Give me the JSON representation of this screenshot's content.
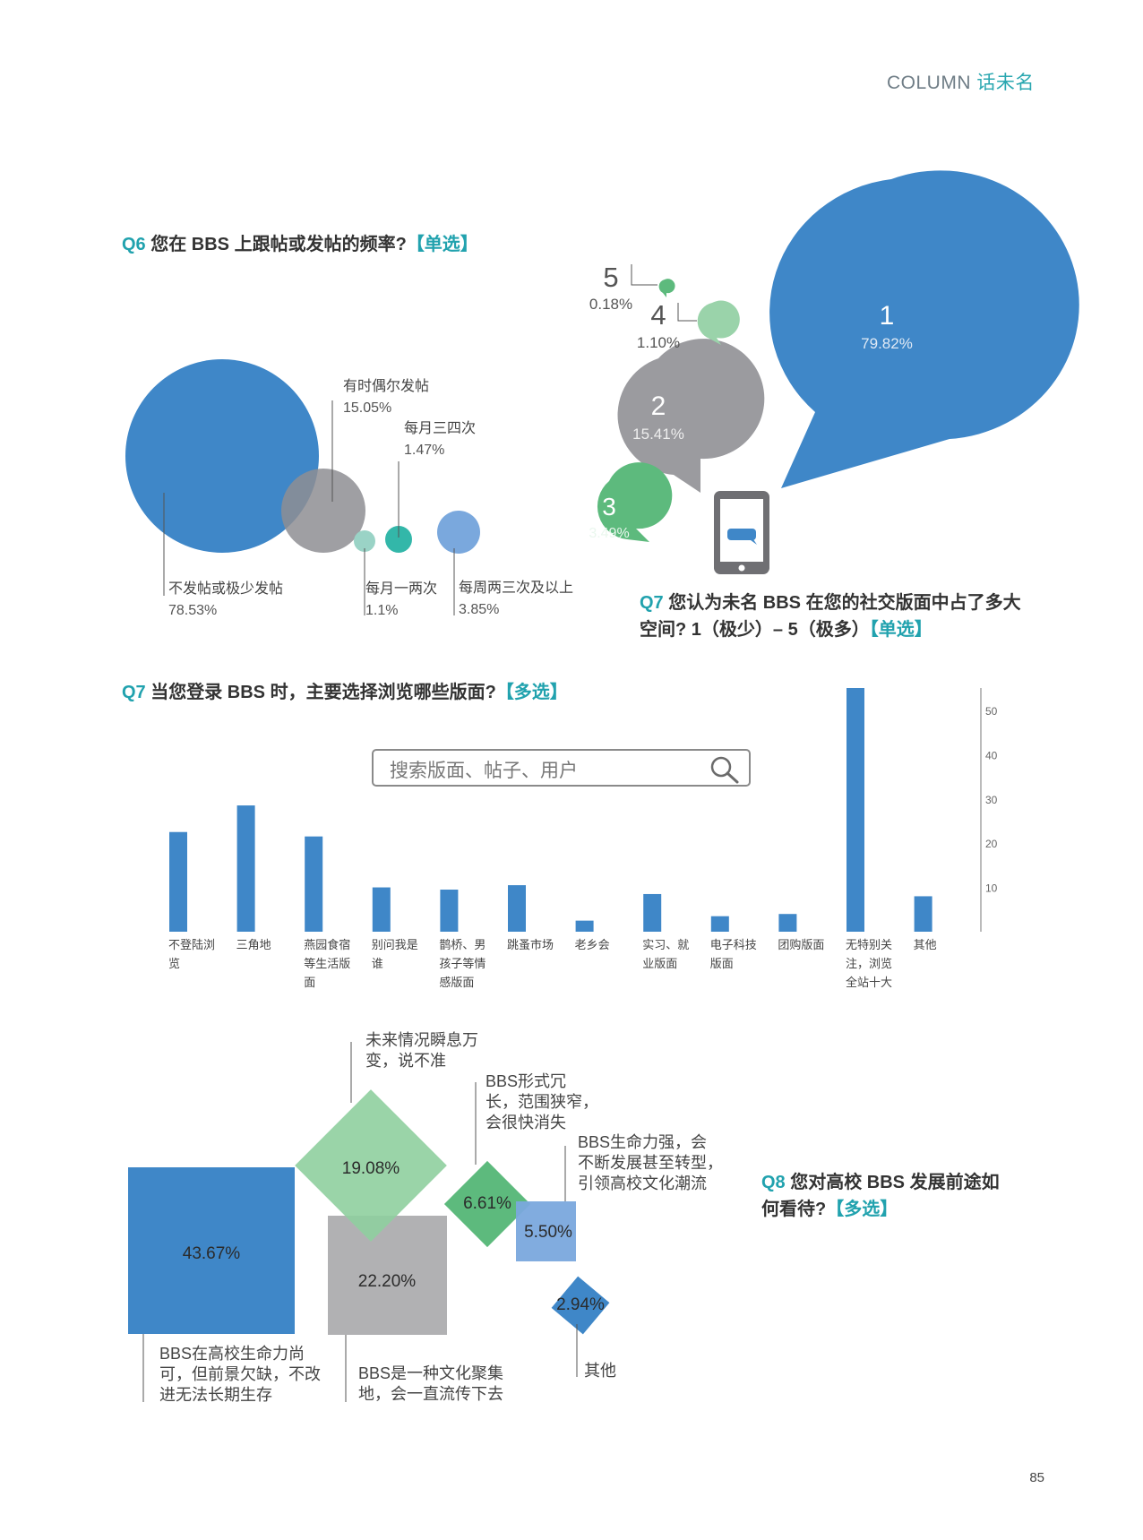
{
  "header": {
    "column": "COLUMN",
    "column_zh": "话未名"
  },
  "page_number": "85",
  "q6": {
    "num": "Q6",
    "text": " 您在 BBS 上跟帖或发帖的频率?",
    "tag": "【单选】",
    "labels": {
      "never": {
        "name": "不发帖或极少发帖",
        "pct": "78.53%"
      },
      "occasional": {
        "name": "有时偶尔发帖",
        "pct": "15.05%"
      },
      "monthly34": {
        "name": "每月三四次",
        "pct": "1.47%"
      },
      "monthly12": {
        "name": "每月一两次",
        "pct": "1.1%"
      },
      "weekly": {
        "name": "每周两三次及以上",
        "pct": "3.85%"
      }
    }
  },
  "q7a": {
    "num": "Q7",
    "line1": " 您认为未名 BBS 在您的社交版面中占了多大",
    "line2": "空间? 1（极少）– 5（极多）",
    "tag": "【单选】"
  },
  "q7b": {
    "num": "Q7",
    "text": " 当您登录 BBS 时，主要选择浏览哪些版面?",
    "tag": "【多选】",
    "search_placeholder": "搜索版面、帖子、用户"
  },
  "q8": {
    "num": "Q8",
    "line1": " 您对高校 BBS 发展前途如",
    "line2": "何看待?",
    "tag": "【多选】",
    "labels": {
      "a": [
        "BBS在高校生命力尚",
        "可，但前景欠缺，不改",
        "进无法长期生存"
      ],
      "b": [
        "BBS是一种文化聚集",
        "地，会一直流传下去"
      ],
      "c": [
        "未来情况瞬息万",
        "变，说不准"
      ],
      "d": [
        "BBS形式冗",
        "长，范围狭窄，",
        "会很快消失"
      ],
      "e": [
        "BBS生命力强，会",
        "不断发展甚至转型，",
        "引领高校文化潮流"
      ],
      "f": [
        "其他"
      ]
    }
  },
  "colors": {
    "blue": "#3f87c8",
    "gray": "#9b9b9f",
    "lightgreen": "#9ad3aa",
    "green": "#5dba7d",
    "teal": "#33b7a9",
    "lightblue": "#7aa8dd"
  },
  "chart_data": [
    {
      "type": "bubble",
      "categories": [
        "不发帖或极少发帖",
        "有时偶尔发帖",
        "每月一两次",
        "每月三四次",
        "每周两三次及以上"
      ],
      "values": [
        78.53,
        15.05,
        1.1,
        1.47,
        3.85
      ],
      "unit": "%"
    },
    {
      "type": "bubble",
      "categories": [
        "1",
        "2",
        "3",
        "4",
        "5"
      ],
      "values": [
        79.82,
        15.41,
        3.49,
        1.1,
        0.18
      ],
      "labels": [
        "79.82%",
        "15.41%",
        "3.49%",
        "1.10%",
        "0.18%"
      ],
      "unit": "%"
    },
    {
      "type": "bar",
      "categories": [
        "不登陆浏览",
        "三角地",
        "燕园食宿等生活版面",
        "别问我是谁",
        "鹊桥、男孩子等情感版面",
        "跳蚤市场",
        "老乡会",
        "实习、就业版面",
        "电子科技版面",
        "团购版面",
        "无特别关注，浏览全站十大",
        "其他"
      ],
      "category_lines": [
        [
          "不登陆浏",
          "览"
        ],
        [
          "三角地"
        ],
        [
          "燕园食宿",
          "等生活版",
          "面"
        ],
        [
          "别问我是",
          "谁"
        ],
        [
          "鹊桥、男",
          "孩子等情",
          "感版面"
        ],
        [
          "跳蚤市场"
        ],
        [
          "老乡会"
        ],
        [
          "实习、就",
          "业版面"
        ],
        [
          "电子科技",
          "版面"
        ],
        [
          "团购版面"
        ],
        [
          "无特别关",
          "注，浏览",
          "全站十大"
        ],
        [
          "其他"
        ]
      ],
      "values": [
        22.5,
        28.5,
        21.5,
        10,
        9.5,
        10.5,
        2.5,
        8.5,
        3.5,
        4,
        55,
        8
      ],
      "yticks": [
        10,
        20,
        30,
        40,
        50
      ],
      "ylim": [
        0,
        55
      ]
    },
    {
      "type": "area-squares",
      "categories": [
        "BBS在高校生命力尚可，但前景欠缺，不改进无法长期生存",
        "BBS是一种文化聚集地，会一直流传下去",
        "未来情况瞬息万变，说不准",
        "BBS形式冗长，范围狭窄，会很快消失",
        "BBS生命力强，会不断发展甚至转型，引领高校文化潮流",
        "其他"
      ],
      "values": [
        43.67,
        22.2,
        19.08,
        6.61,
        5.5,
        2.94
      ],
      "labels": [
        "43.67%",
        "22.20%",
        "19.08%",
        "6.61%",
        "5.50%",
        "2.94%"
      ],
      "unit": "%"
    }
  ]
}
